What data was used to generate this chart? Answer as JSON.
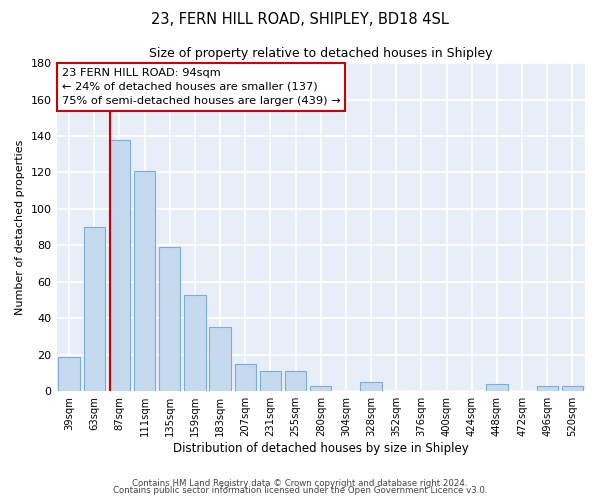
{
  "title": "23, FERN HILL ROAD, SHIPLEY, BD18 4SL",
  "subtitle": "Size of property relative to detached houses in Shipley",
  "xlabel": "Distribution of detached houses by size in Shipley",
  "ylabel": "Number of detached properties",
  "bar_color": "#c5d9ef",
  "bar_edge_color": "#7aaed6",
  "background_color": "#e8eef8",
  "grid_color": "#ffffff",
  "categories": [
    "39sqm",
    "63sqm",
    "87sqm",
    "111sqm",
    "135sqm",
    "159sqm",
    "183sqm",
    "207sqm",
    "231sqm",
    "255sqm",
    "280sqm",
    "304sqm",
    "328sqm",
    "352sqm",
    "376sqm",
    "400sqm",
    "424sqm",
    "448sqm",
    "472sqm",
    "496sqm",
    "520sqm"
  ],
  "values": [
    19,
    90,
    138,
    121,
    79,
    53,
    35,
    15,
    11,
    11,
    3,
    0,
    5,
    0,
    0,
    0,
    0,
    4,
    0,
    3,
    3
  ],
  "ylim": [
    0,
    180
  ],
  "yticks": [
    0,
    20,
    40,
    60,
    80,
    100,
    120,
    140,
    160,
    180
  ],
  "property_line_color": "#cc0000",
  "annotation_line1": "23 FERN HILL ROAD: 94sqm",
  "annotation_line2": "← 24% of detached houses are smaller (137)",
  "annotation_line3": "75% of semi-detached houses are larger (439) →",
  "annotation_box_color": "#ffffff",
  "annotation_box_edge": "#cc0000",
  "footer_line1": "Contains HM Land Registry data © Crown copyright and database right 2024.",
  "footer_line2": "Contains public sector information licensed under the Open Government Licence v3.0."
}
